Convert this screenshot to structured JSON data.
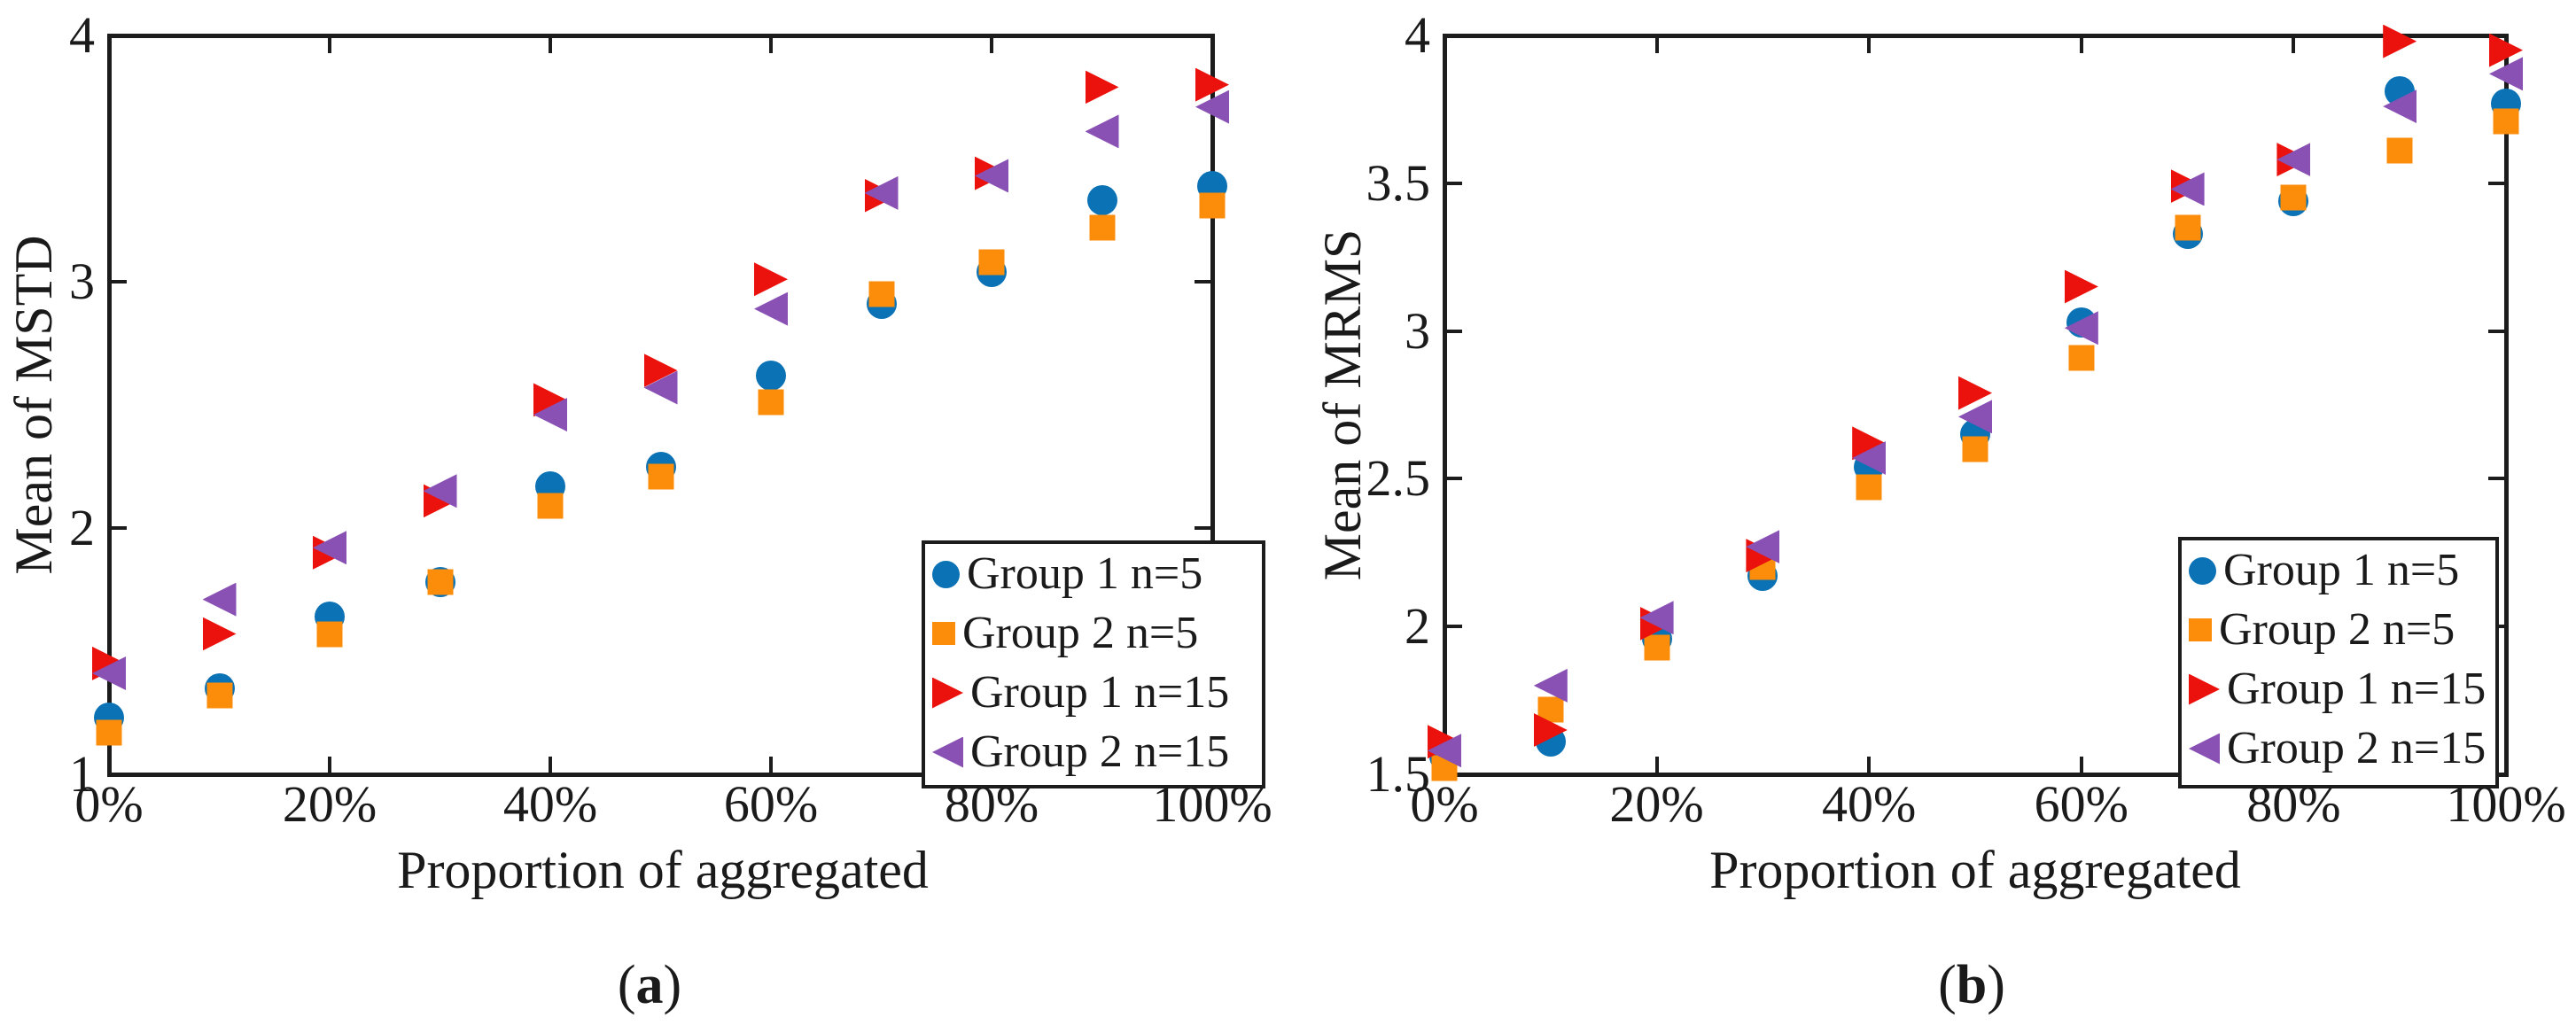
{
  "figure": {
    "xlabel": "Proportion of aggregated",
    "captions": {
      "a": "(a)",
      "b": "(b)"
    }
  },
  "colors": {
    "group1_n5_blue": "#0B72B5",
    "group2_n5_orange": "#FB8D0A",
    "group1_n15_red": "#EB120D",
    "group2_n15_purple": "#8A51B5",
    "axis": "#1c1c1c",
    "text": "#1a1a1a",
    "background": "#ffffff"
  },
  "chart_data": [
    {
      "id": "a",
      "type": "scatter",
      "caption": "(a)",
      "xlabel": "Proportion of aggregated",
      "ylabel": "Mean of MSTD",
      "xlim_pct": [
        0,
        100
      ],
      "ylim": [
        1,
        4
      ],
      "x_tick_labels": [
        "0%",
        "20%",
        "40%",
        "60%",
        "80%",
        "100%"
      ],
      "x_tick_pct": [
        0,
        20,
        40,
        60,
        80,
        100
      ],
      "y_tick_labels": [
        "1",
        "2",
        "3",
        "4"
      ],
      "y_ticks": [
        1,
        2,
        3,
        4
      ],
      "grid": false,
      "legend_position": "lower right",
      "x_pct": [
        0,
        10,
        20,
        30,
        40,
        50,
        60,
        70,
        80,
        90,
        100
      ],
      "series": [
        {
          "name": "Group 1 n=5",
          "marker": "circle",
          "color": "#0B72B5",
          "values": [
            1.23,
            1.35,
            1.64,
            1.78,
            2.17,
            2.25,
            2.62,
            2.91,
            3.04,
            3.33,
            3.39
          ]
        },
        {
          "name": "Group 2 n=5",
          "marker": "square",
          "color": "#FB8D0A",
          "values": [
            1.17,
            1.32,
            1.57,
            1.78,
            2.09,
            2.21,
            2.51,
            2.95,
            3.08,
            3.22,
            3.31
          ]
        },
        {
          "name": "Group 1 n=15",
          "marker": "triangle-right",
          "color": "#EB120D",
          "values": [
            1.45,
            1.57,
            1.9,
            2.11,
            2.52,
            2.64,
            3.01,
            3.35,
            3.44,
            3.79,
            3.8
          ]
        },
        {
          "name": "Group 2 n=15",
          "marker": "triangle-left",
          "color": "#8A51B5",
          "values": [
            1.41,
            1.71,
            1.92,
            2.15,
            2.46,
            2.57,
            2.89,
            3.36,
            3.43,
            3.61,
            3.71
          ]
        }
      ]
    },
    {
      "id": "b",
      "type": "scatter",
      "caption": "(b)",
      "xlabel": "Proportion of aggregated",
      "ylabel": "Mean of MRMS",
      "xlim_pct": [
        0,
        100
      ],
      "ylim": [
        1.5,
        4
      ],
      "x_tick_labels": [
        "0%",
        "20%",
        "40%",
        "60%",
        "80%",
        "100%"
      ],
      "x_tick_pct": [
        0,
        20,
        40,
        60,
        80,
        100
      ],
      "y_tick_labels": [
        "1.5",
        "2",
        "2.5",
        "3",
        "3.5",
        "4"
      ],
      "y_ticks": [
        1.5,
        2,
        2.5,
        3,
        3.5,
        4
      ],
      "grid": false,
      "legend_position": "lower right",
      "x_pct": [
        0,
        10,
        20,
        30,
        40,
        50,
        60,
        70,
        80,
        90,
        100
      ],
      "series": [
        {
          "name": "Group 1 n=5",
          "marker": "circle",
          "color": "#0B72B5",
          "values": [
            1.56,
            1.61,
            1.96,
            2.17,
            2.54,
            2.65,
            3.03,
            3.33,
            3.44,
            3.81,
            3.77
          ]
        },
        {
          "name": "Group 2 n=5",
          "marker": "square",
          "color": "#FB8D0A",
          "values": [
            1.52,
            1.72,
            1.93,
            2.2,
            2.47,
            2.6,
            2.91,
            3.35,
            3.45,
            3.61,
            3.71
          ]
        },
        {
          "name": "Group 1 n=15",
          "marker": "triangle-right",
          "color": "#EB120D",
          "values": [
            1.61,
            1.65,
            2.01,
            2.24,
            2.62,
            2.79,
            3.15,
            3.49,
            3.58,
            3.98,
            3.95
          ]
        },
        {
          "name": "Group 2 n=15",
          "marker": "triangle-left",
          "color": "#8A51B5",
          "values": [
            1.58,
            1.8,
            2.03,
            2.27,
            2.57,
            2.71,
            3.01,
            3.48,
            3.58,
            3.76,
            3.87
          ]
        }
      ]
    }
  ]
}
